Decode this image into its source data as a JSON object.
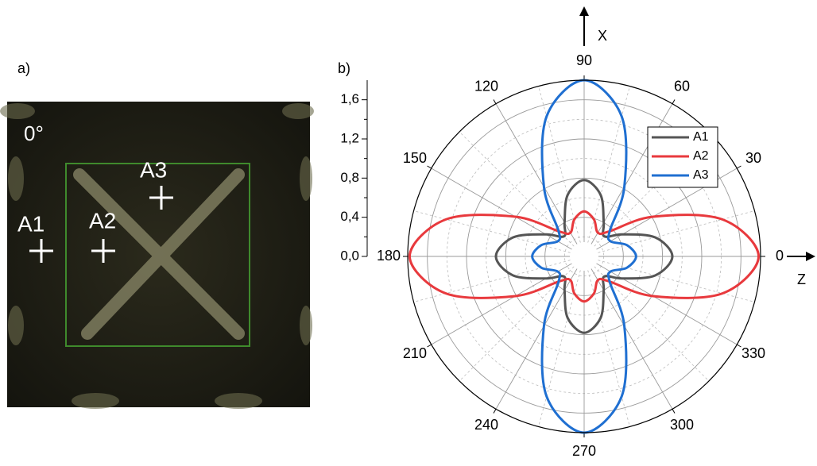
{
  "panel_a": {
    "label": "a)",
    "angle": "0°",
    "points": [
      "A1",
      "A2",
      "A3"
    ]
  },
  "chart_data": {
    "type": "polar",
    "label": "b)",
    "theta": [
      0,
      15,
      30,
      45,
      60,
      75,
      90,
      105,
      120,
      135,
      150,
      165,
      180,
      195,
      210,
      225,
      240,
      255,
      270,
      285,
      300,
      315,
      330,
      345,
      360
    ],
    "series": [
      {
        "name": "A1",
        "color": "#555555",
        "values": [
          0.9,
          0.75,
          0.45,
          0.29,
          0.4,
          0.65,
          0.78,
          0.65,
          0.4,
          0.29,
          0.45,
          0.75,
          0.9,
          0.75,
          0.45,
          0.29,
          0.4,
          0.65,
          0.78,
          0.65,
          0.4,
          0.29,
          0.45,
          0.75,
          0.9
        ]
      },
      {
        "name": "A2",
        "color": "#e8393d",
        "values": [
          1.78,
          1.46,
          0.81,
          0.36,
          0.28,
          0.39,
          0.46,
          0.39,
          0.28,
          0.36,
          0.81,
          1.46,
          1.78,
          1.46,
          0.81,
          0.36,
          0.28,
          0.39,
          0.46,
          0.39,
          0.28,
          0.36,
          0.81,
          1.46,
          1.78
        ]
      },
      {
        "name": "A3",
        "color": "#1f6fd1",
        "values": [
          0.53,
          0.45,
          0.31,
          0.37,
          0.82,
          1.48,
          1.8,
          1.48,
          0.82,
          0.37,
          0.31,
          0.45,
          0.53,
          0.45,
          0.31,
          0.37,
          0.82,
          1.48,
          1.8,
          1.48,
          0.82,
          0.37,
          0.31,
          0.45,
          0.53
        ]
      }
    ],
    "rlim": [
      0,
      1.8
    ],
    "rticks": [
      {
        "value": 0,
        "label": "0,0"
      },
      {
        "value": 0.4,
        "label": "0,4"
      },
      {
        "value": 0.8,
        "label": "0,8"
      },
      {
        "value": 1.2,
        "label": "1,2"
      },
      {
        "value": 1.6,
        "label": "1,6"
      }
    ],
    "r_minor_ticks": [
      0.2,
      0.6,
      1.0,
      1.4
    ],
    "theta_ticks": [
      0,
      30,
      60,
      90,
      120,
      150,
      180,
      210,
      240,
      270,
      300,
      330
    ],
    "theta_minor_ticks": [
      15,
      45,
      75,
      105,
      135,
      165,
      195,
      225,
      255,
      285,
      315,
      345
    ],
    "x_axis_label": "Z",
    "y_axis_label": "X",
    "legend": "upper right",
    "grid": true
  }
}
